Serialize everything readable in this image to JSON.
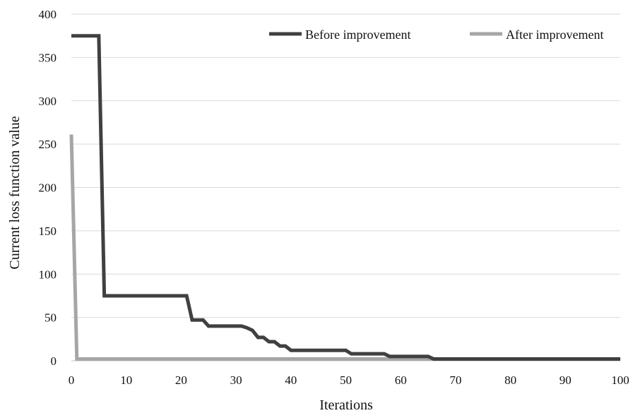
{
  "chart_data": {
    "type": "line",
    "title": "",
    "xlabel": "Iterations",
    "ylabel": "Current loss function value",
    "xlim": [
      0,
      100
    ],
    "ylim": [
      0,
      400
    ],
    "x_ticks": [
      "0",
      "10",
      "20",
      "30",
      "40",
      "50",
      "60",
      "70",
      "80",
      "90",
      "100"
    ],
    "y_ticks": [
      "0",
      "50",
      "100",
      "150",
      "200",
      "250",
      "300",
      "350",
      "400"
    ],
    "grid": "horizontal",
    "legend_position": "top-right",
    "series": [
      {
        "name": "Before improvement",
        "color": "#404040",
        "points": [
          [
            0,
            375
          ],
          [
            5,
            375
          ],
          [
            6,
            75
          ],
          [
            21,
            75
          ],
          [
            22,
            47
          ],
          [
            24,
            47
          ],
          [
            25,
            40
          ],
          [
            31,
            40
          ],
          [
            32,
            38
          ],
          [
            33,
            35
          ],
          [
            34,
            27
          ],
          [
            35,
            27
          ],
          [
            36,
            22
          ],
          [
            37,
            22
          ],
          [
            38,
            17
          ],
          [
            39,
            17
          ],
          [
            40,
            12
          ],
          [
            50,
            12
          ],
          [
            51,
            8
          ],
          [
            57,
            8
          ],
          [
            58,
            5
          ],
          [
            65,
            5
          ],
          [
            66,
            2
          ],
          [
            100,
            2
          ]
        ]
      },
      {
        "name": "After improvement",
        "color": "#a6a6a6",
        "points": [
          [
            0,
            261
          ],
          [
            1,
            2
          ],
          [
            100,
            2
          ]
        ]
      }
    ]
  }
}
